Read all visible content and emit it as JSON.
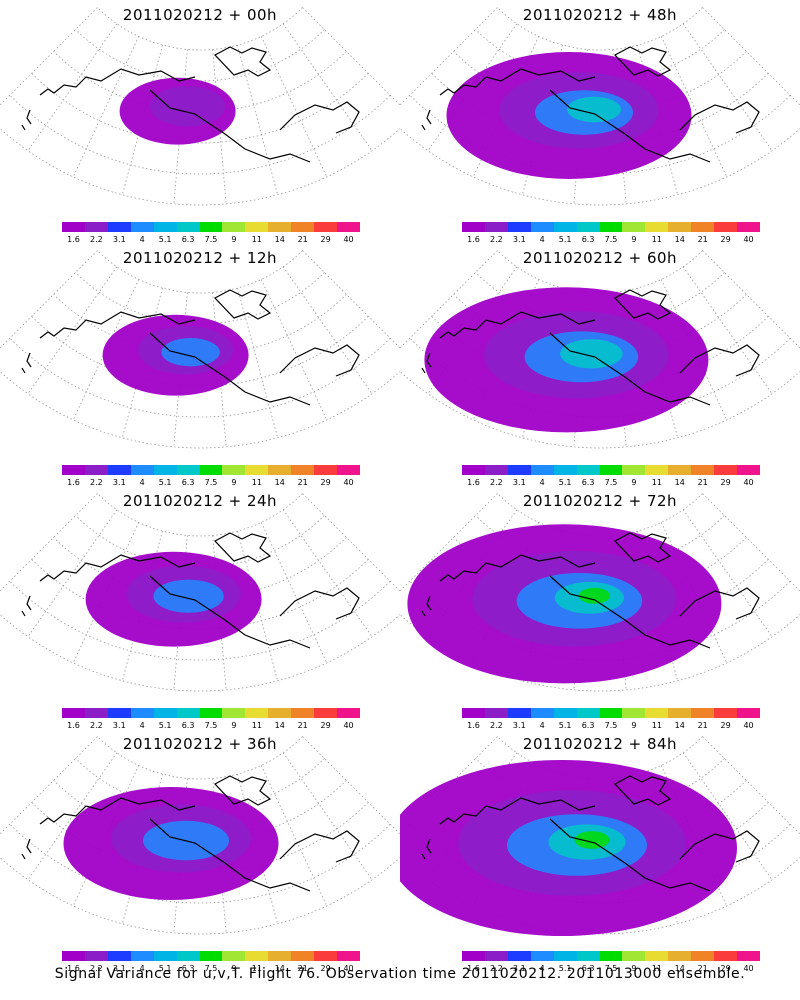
{
  "chart_data": {
    "type": "map-panels",
    "caption": "Signal Variance for u,v,T. Flight 76. Observation time 2011020212. 2011013000 ensemble.",
    "colorbar": {
      "labels": [
        "1.6",
        "2.2",
        "3.1",
        "4",
        "5.1",
        "6.3",
        "7.5",
        "9",
        "11",
        "14",
        "21",
        "29",
        "40"
      ],
      "colors": [
        "#a000c8",
        "#8c1ec8",
        "#1e3cff",
        "#1e8cff",
        "#00b4e6",
        "#00c8c8",
        "#00dc00",
        "#a0e632",
        "#e6dc32",
        "#e6af2d",
        "#f08228",
        "#fa3c3c",
        "#f0148c"
      ]
    },
    "panels": [
      {
        "title": "2011020212 + 00h",
        "spread": 0.12
      },
      {
        "title": "2011020212 + 48h",
        "spread": 0.55
      },
      {
        "title": "2011020212 + 12h",
        "spread": 0.22
      },
      {
        "title": "2011020212 + 60h",
        "spread": 0.68
      },
      {
        "title": "2011020212 + 24h",
        "spread": 0.32
      },
      {
        "title": "2011020212 + 72h",
        "spread": 0.78
      },
      {
        "title": "2011020212 + 36h",
        "spread": 0.45
      },
      {
        "title": "2011020212 + 84h",
        "spread": 0.9
      }
    ]
  }
}
